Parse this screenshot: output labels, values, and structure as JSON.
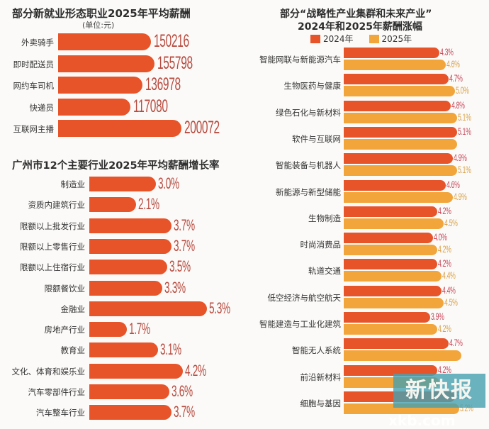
{
  "chart_data": [
    {
      "type": "bar",
      "orientation": "horizontal",
      "title": "部分新就业形态职业2025年平均薪酬",
      "subtitle": "(单位:元)",
      "categories": [
        "外卖骑手",
        "即时配送员",
        "网约车司机",
        "快递员",
        "互联网主播"
      ],
      "values": [
        150216,
        155798,
        136978,
        117080,
        200072
      ],
      "value_labels": [
        "150216",
        "155798",
        "136978",
        "117080",
        "200072"
      ],
      "color": "#e8542a"
    },
    {
      "type": "bar",
      "orientation": "horizontal",
      "title": "广州市12个主要行业2025年平均薪酬增长率",
      "categories": [
        "制造业",
        "资质内建筑行业",
        "限额以上批发行业",
        "限额以上零售行业",
        "限额以上住宿行业",
        "限额餐饮业",
        "金融业",
        "房地产行业",
        "教育业",
        "文化、体育和娱乐业",
        "汽车零部件行业",
        "汽车整车行业"
      ],
      "values": [
        3.0,
        2.1,
        3.7,
        3.7,
        3.5,
        3.3,
        5.3,
        1.7,
        3.1,
        4.2,
        3.6,
        3.7
      ],
      "value_labels": [
        "3.0%",
        "2.1%",
        "3.7%",
        "3.7%",
        "3.5%",
        "3.3%",
        "5.3%",
        "1.7%",
        "3.1%",
        "4.2%",
        "3.6%",
        "3.7%"
      ],
      "unit": "%",
      "color": "#e8542a"
    },
    {
      "type": "bar",
      "orientation": "horizontal",
      "title": "部分“战略性产业集群和未来产业”2024年和2025年薪酬涨幅",
      "legend": [
        "2024年",
        "2025年"
      ],
      "legend_position": "top",
      "categories": [
        "智能网联与新能源汽车",
        "生物医药与健康",
        "绿色石化与新材料",
        "软件与互联网",
        "智能装备与机器人",
        "新能源与新型储能",
        "生物制造",
        "时尚消费品",
        "轨道交通",
        "低空经济与航空航天",
        "智能建造与工业化建筑",
        "智能无人系统",
        "前沿新材料",
        "细胞与基因"
      ],
      "series": [
        {
          "name": "2024年",
          "color": "#e8542a",
          "values": [
            4.3,
            4.7,
            4.8,
            5.1,
            4.9,
            4.6,
            4.2,
            4.0,
            4.2,
            4.4,
            3.9,
            4.7,
            4.2,
            5.0
          ],
          "labels": [
            "4.3%",
            "4.7%",
            "4.8%",
            "5.1%",
            "4.9%",
            "4.6%",
            "4.2%",
            "4.0%",
            "4.2%",
            "4.4%",
            "3.9%",
            "4.7%",
            "4.2%",
            "5.0%"
          ]
        },
        {
          "name": "2025年",
          "color": "#f2a53a",
          "values": [
            4.6,
            5.0,
            5.1,
            5.1,
            5.1,
            4.9,
            4.5,
            4.2,
            4.4,
            4.5,
            4.2,
            5.3,
            4.3,
            5.2
          ],
          "labels": [
            "4.6%",
            "5.0%",
            "5.1%",
            "",
            "5.1%",
            "4.9%",
            "4.5%",
            "4.2%",
            "4.4%",
            "4.5%",
            "4.2%",
            "",
            "",
            "5.2%"
          ]
        }
      ],
      "unit": "%"
    }
  ],
  "watermark": {
    "name": "新快报",
    "url": "xkb.com"
  }
}
